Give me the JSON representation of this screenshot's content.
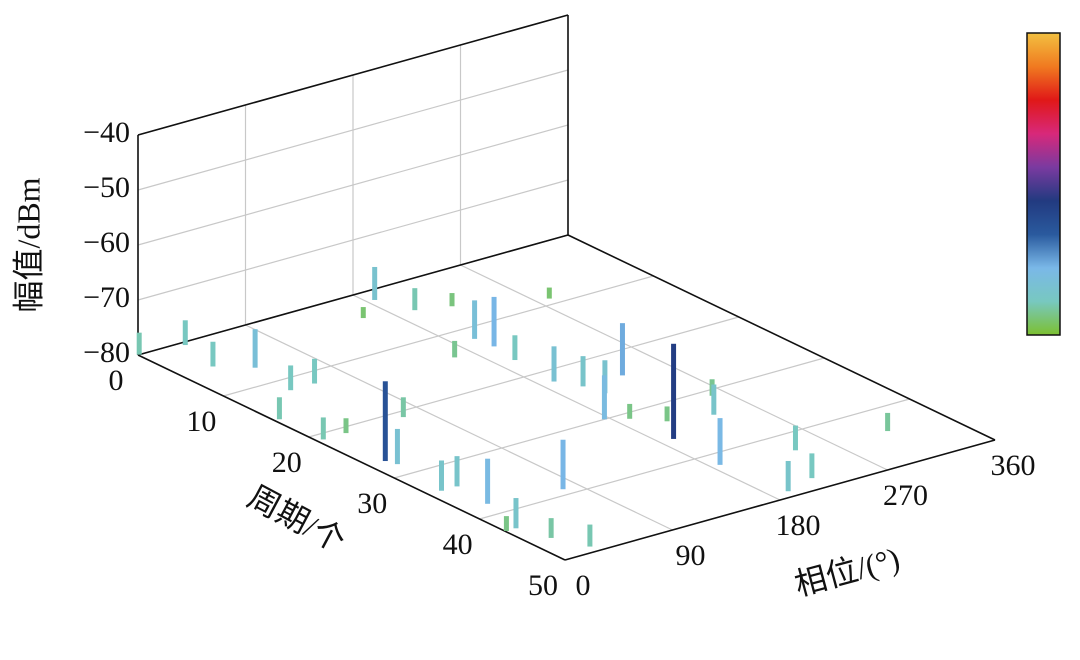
{
  "chart_data": {
    "type": "bar3d",
    "xlabel": "相位/(°)",
    "ylabel": "周期/个",
    "zlabel": "幅值/dBm",
    "xlim": [
      0,
      360
    ],
    "xticks": [
      0,
      90,
      180,
      270,
      360
    ],
    "ylim": [
      0,
      50
    ],
    "yticks": [
      0,
      10,
      20,
      30,
      40,
      50
    ],
    "zlim": [
      -80,
      -40
    ],
    "zticks": [
      {
        "value": -80,
        "label": "−80"
      },
      {
        "value": -70,
        "label": "−70"
      },
      {
        "value": -60,
        "label": "−60"
      },
      {
        "value": -50,
        "label": "−50"
      },
      {
        "value": -40,
        "label": "−40"
      }
    ],
    "grid": true,
    "colorbar": true,
    "colormap": [
      "#7cc030",
      "#78c8c0",
      "#7ab8e8",
      "#2a5a9e",
      "#223a80",
      "#7a3aa0",
      "#d8287a",
      "#e01818",
      "#f07a20",
      "#f2c040"
    ],
    "x": [
      1,
      36,
      48,
      27,
      42,
      62,
      14,
      186,
      196,
      198,
      196,
      234,
      191,
      77,
      313,
      280,
      259,
      243,
      221,
      187,
      176,
      191,
      201,
      165,
      220,
      72,
      11,
      21,
      9,
      17,
      28,
      24,
      17,
      5,
      4,
      207,
      190,
      205,
      194,
      194,
      160,
      24,
      1,
      239
    ],
    "y": [
      0,
      0.5,
      7,
      5,
      12,
      12,
      27,
      1.7,
      5,
      14,
      12,
      24,
      36,
      39,
      44,
      9,
      31,
      43,
      48,
      42,
      30,
      22,
      24,
      14,
      6,
      21,
      34,
      38,
      43,
      46,
      49,
      34,
      28,
      21,
      16,
      33,
      31,
      26,
      49,
      17,
      4,
      21,
      43,
      34
    ],
    "values": [
      -76,
      -75.5,
      -73,
      -75.5,
      -75.5,
      -75.5,
      -65.5,
      -74,
      -76,
      -71,
      -73,
      -70.5,
      -62.7,
      -71,
      -76.7,
      -78,
      -77,
      -75.5,
      -75.5,
      -71.5,
      -72,
      -73.6,
      -74.5,
      -77,
      -77.6,
      -76.4,
      -74.5,
      -71.8,
      -74.5,
      -76.4,
      -76,
      -74.5,
      -73.6,
      -76,
      -76,
      -77.3,
      -77.3,
      -74,
      -74.5,
      -75.5,
      -78,
      -77.3,
      -77.3,
      -74.5
    ]
  }
}
